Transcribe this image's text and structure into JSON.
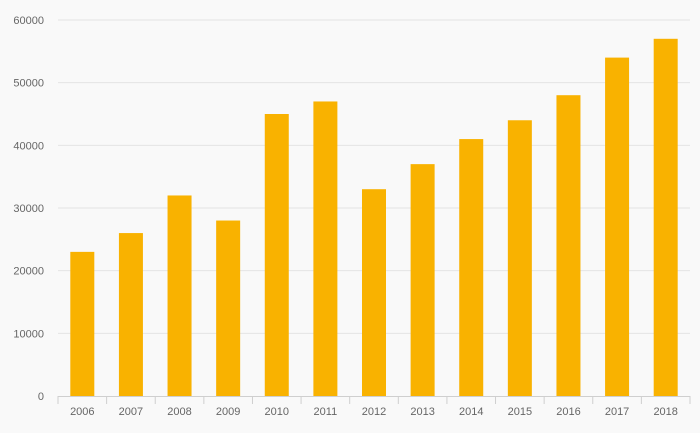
{
  "chart_data": {
    "type": "bar",
    "title": "",
    "xlabel": "",
    "ylabel": "",
    "categories": [
      "2006",
      "2007",
      "2008",
      "2009",
      "2010",
      "2011",
      "2012",
      "2013",
      "2014",
      "2015",
      "2016",
      "2017",
      "2018"
    ],
    "values": [
      23000,
      26000,
      32000,
      28000,
      45000,
      47000,
      33000,
      37000,
      41000,
      44000,
      48000,
      54000,
      57000
    ],
    "ylim": [
      0,
      60000
    ],
    "yticks": [
      0,
      10000,
      20000,
      30000,
      40000,
      50000,
      60000
    ],
    "ytick_labels": [
      "0",
      "10000",
      "20000",
      "30000",
      "40000",
      "50000",
      "60000"
    ],
    "grid": true,
    "legend": "none",
    "colors": {
      "bar": "#F9B200",
      "background": "#F9F9F9",
      "grid": "#E4E4E4",
      "axis": "#CFCFCF",
      "tick_text": "#666666"
    }
  }
}
